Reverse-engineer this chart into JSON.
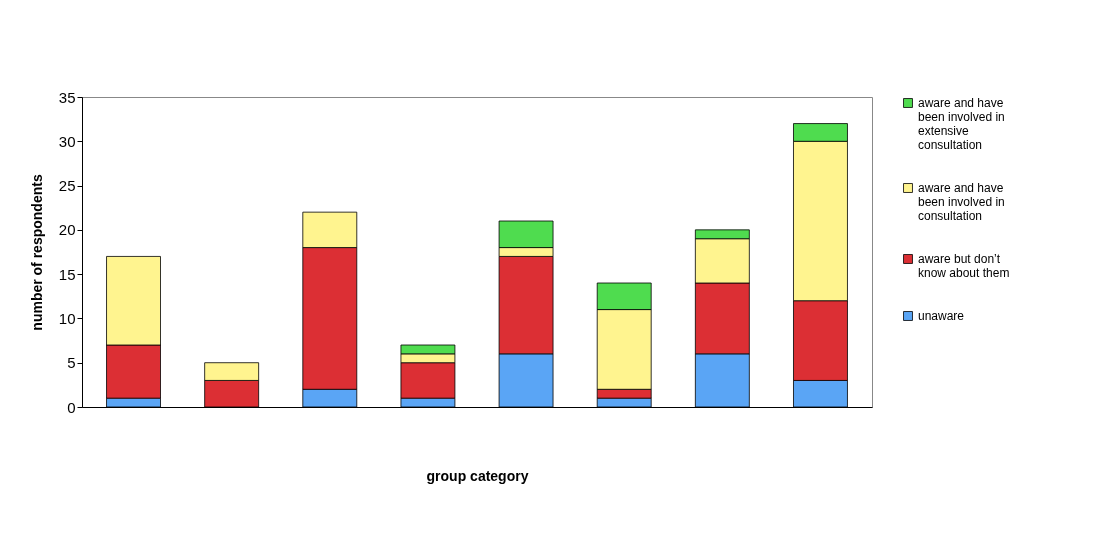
{
  "chart_data": {
    "type": "bar",
    "stacked": true,
    "xlabel": "group category",
    "ylabel": "number of respondents",
    "categories": [
      null,
      null,
      null,
      null,
      null,
      null,
      null,
      null
    ],
    "series": [
      {
        "name": "unaware",
        "color": "#5aa5f5",
        "values": [
          1,
          0,
          2,
          1,
          6,
          1,
          6,
          3
        ]
      },
      {
        "name": "aware but don’t know about them",
        "color": "#dc2f34",
        "values": [
          6,
          3,
          16,
          4,
          11,
          1,
          8,
          9
        ]
      },
      {
        "name": "aware and have been involved in consultation",
        "color": "#fff48f",
        "values": [
          10,
          2,
          4,
          1,
          1,
          9,
          5,
          18
        ]
      },
      {
        "name": "aware and have been involved in extensive consultation",
        "color": "#4fdc4f",
        "values": [
          0,
          0,
          0,
          1,
          3,
          3,
          1,
          2
        ]
      }
    ],
    "ylim": [
      0,
      35
    ],
    "yticks": [
      0,
      5,
      10,
      15,
      20,
      25,
      30,
      35
    ],
    "grid": false,
    "legend": "right"
  }
}
